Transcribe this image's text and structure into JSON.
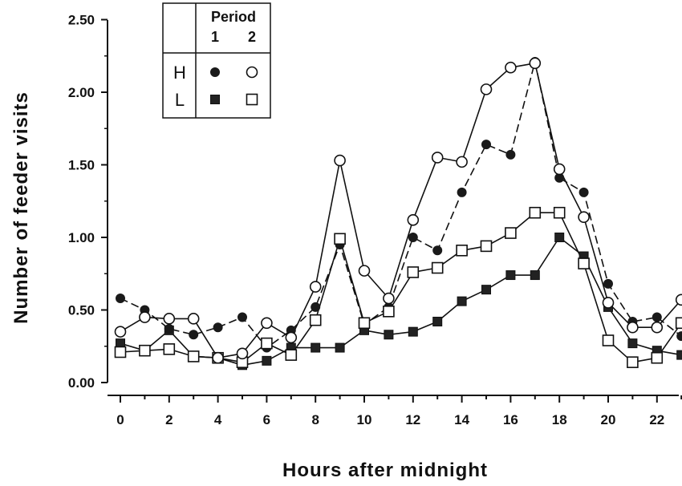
{
  "chart_data": {
    "type": "line",
    "xlabel": "Hours after midnight",
    "ylabel": "Number of feeder visits",
    "xlim": [
      -0.5,
      23
    ],
    "ylim": [
      0,
      2.5
    ],
    "x_ticks": [
      0,
      2,
      4,
      6,
      8,
      10,
      12,
      14,
      16,
      18,
      20,
      22
    ],
    "y_ticks": [
      "0.00",
      "0.50",
      "1.00",
      "1.50",
      "2.00",
      "2.50"
    ],
    "grid": false,
    "legend": {
      "placement": "top-left",
      "header": "Period",
      "columns": [
        "1",
        "2"
      ],
      "rows": [
        "H",
        "L"
      ]
    },
    "x": [
      0,
      1,
      2,
      3,
      4,
      5,
      6,
      7,
      8,
      9,
      10,
      11,
      12,
      13,
      14,
      15,
      16,
      17,
      18,
      19,
      20,
      21,
      22,
      23
    ],
    "series": [
      {
        "row": "H",
        "period": "1",
        "marker": "filled-circle",
        "line": "dashed",
        "values": [
          0.58,
          0.5,
          0.37,
          0.33,
          0.38,
          0.45,
          0.24,
          0.36,
          0.52,
          0.95,
          0.4,
          0.52,
          1.0,
          0.91,
          1.31,
          1.64,
          1.57,
          2.21,
          1.41,
          1.31,
          0.68,
          0.42,
          0.45,
          0.32
        ]
      },
      {
        "row": "H",
        "period": "2",
        "marker": "open-circle",
        "line": "solid",
        "values": [
          0.35,
          0.45,
          0.44,
          0.44,
          0.17,
          0.2,
          0.41,
          0.31,
          0.66,
          1.53,
          0.77,
          0.58,
          1.12,
          1.55,
          1.52,
          2.02,
          2.17,
          2.2,
          1.47,
          1.14,
          0.55,
          0.38,
          0.38,
          0.57
        ]
      },
      {
        "row": "L",
        "period": "1",
        "marker": "filled-square",
        "line": "solid",
        "values": [
          0.27,
          0.22,
          0.36,
          0.18,
          0.17,
          0.12,
          0.15,
          0.24,
          0.24,
          0.24,
          0.36,
          0.33,
          0.35,
          0.42,
          0.56,
          0.64,
          0.74,
          0.74,
          1.0,
          0.87,
          0.52,
          0.27,
          0.22,
          0.19
        ]
      },
      {
        "row": "L",
        "period": "2",
        "marker": "open-square",
        "line": "solid",
        "values": [
          0.21,
          0.22,
          0.23,
          0.18,
          0.17,
          0.14,
          0.27,
          0.19,
          0.43,
          0.99,
          0.41,
          0.49,
          0.76,
          0.79,
          0.91,
          0.94,
          1.03,
          1.17,
          1.17,
          0.82,
          0.29,
          0.14,
          0.17,
          0.41
        ]
      }
    ]
  }
}
